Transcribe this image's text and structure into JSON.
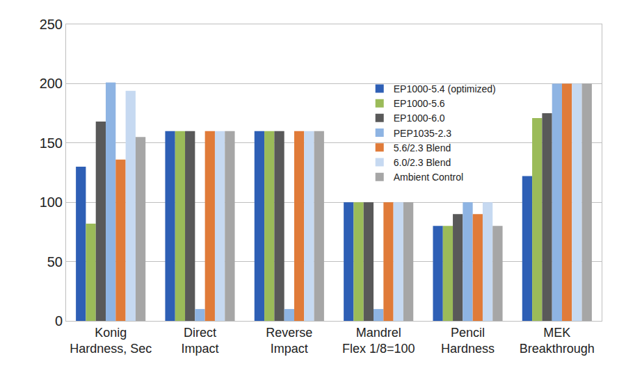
{
  "chart_data": {
    "type": "bar",
    "categories": [
      "Konig\nHardness, Sec",
      "Direct\nImpact",
      "Reverse\nImpact",
      "Mandrel\nFlex 1/8=100",
      "Pencil\nHardness",
      "MEK\nBreakthrough"
    ],
    "series": [
      {
        "name": "EP1000-5.4 (optimized)",
        "color": "#2e5fb5",
        "values": [
          130,
          160,
          160,
          100,
          80,
          122
        ]
      },
      {
        "name": "EP1000-5.6",
        "color": "#9bbb59",
        "values": [
          82,
          160,
          160,
          100,
          80,
          171
        ]
      },
      {
        "name": "EP1000-6.0",
        "color": "#595959",
        "values": [
          168,
          160,
          160,
          100,
          90,
          175
        ]
      },
      {
        "name": "PEP1035-2.3",
        "color": "#8eb4e3",
        "values": [
          201,
          10,
          10,
          10,
          100,
          200
        ]
      },
      {
        "name": "5.6/2.3 Blend",
        "color": "#e07b39",
        "values": [
          136,
          160,
          160,
          100,
          90,
          200
        ]
      },
      {
        "name": "6.0/2.3 Blend",
        "color": "#c6d9f1",
        "values": [
          194,
          160,
          160,
          100,
          100,
          200
        ]
      },
      {
        "name": "Ambient Control",
        "color": "#a6a6a6",
        "values": [
          155,
          160,
          160,
          100,
          80,
          200
        ]
      }
    ],
    "ylim": [
      0,
      250
    ],
    "yticks": [
      0,
      50,
      100,
      150,
      200,
      250
    ],
    "grid": true,
    "legend": "upper right"
  }
}
